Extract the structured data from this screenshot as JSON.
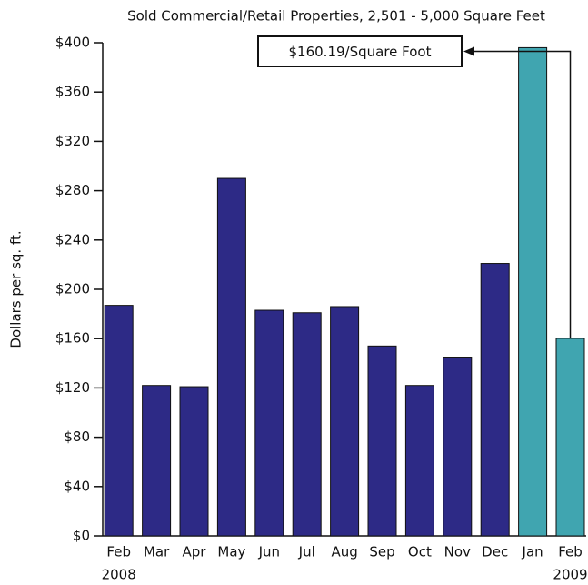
{
  "chart_data": {
    "type": "bar",
    "title": "Sold Commercial/Retail Properties, 2,501 - 5,000 Square Feet",
    "y_label": "Dollars per sq. ft.",
    "categories": [
      "Feb",
      "Mar",
      "Apr",
      "May",
      "Jun",
      "Jul",
      "Aug",
      "Sep",
      "Oct",
      "Nov",
      "Dec",
      "Jan",
      "Feb"
    ],
    "year_labels": [
      {
        "text": "2008",
        "index": 0
      },
      {
        "text": "2009",
        "index": 12
      }
    ],
    "values": [
      187,
      122,
      121,
      290,
      183,
      181,
      186,
      154,
      122,
      145,
      221,
      396,
      160.19
    ],
    "colors": [
      "#2d2a86",
      "#2d2a86",
      "#2d2a86",
      "#2d2a86",
      "#2d2a86",
      "#2d2a86",
      "#2d2a86",
      "#2d2a86",
      "#2d2a86",
      "#2d2a86",
      "#2d2a86",
      "#40a5b0",
      "#40a5b0"
    ],
    "ylim": [
      0,
      400
    ],
    "yticks": [
      {
        "value": 0,
        "label": "$0"
      },
      {
        "value": 40,
        "label": "$40"
      },
      {
        "value": 80,
        "label": "$80"
      },
      {
        "value": 120,
        "label": "$120"
      },
      {
        "value": 160,
        "label": "$160"
      },
      {
        "value": 200,
        "label": "$200"
      },
      {
        "value": 240,
        "label": "$240"
      },
      {
        "value": 280,
        "label": "$280"
      },
      {
        "value": 320,
        "label": "$320"
      },
      {
        "value": 360,
        "label": "$360"
      },
      {
        "value": 400,
        "label": "$400"
      }
    ],
    "annotation": {
      "text": "$160.19/Square Foot",
      "index": 12
    }
  }
}
